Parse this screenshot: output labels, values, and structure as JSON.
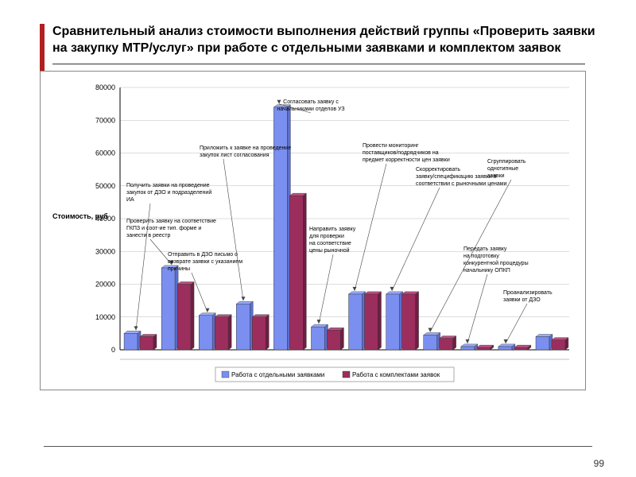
{
  "slide": {
    "title": "Сравнительный анализ стоимости выполнения действий группы «Проверить заявки на закупку МТР/услуг» при работе с отдельными заявками и комплектом заявок",
    "page_number": "99"
  },
  "accent_color": "#b02020",
  "chart": {
    "type": "bar",
    "background_color": "#ffffff",
    "grid_color": "#bbbbbb",
    "axis_color": "#000000",
    "ylabel": "Стоимость, руб",
    "ylabel_fontsize": 9,
    "ylim": [
      0,
      80000
    ],
    "ytick_step": 10000,
    "yticks": [
      0,
      10000,
      20000,
      30000,
      40000,
      50000,
      60000,
      70000,
      80000
    ],
    "legend": {
      "items": [
        {
          "label": "Работа с отдельными заявками",
          "color": "#7a8ff0"
        },
        {
          "label": "Работа с комплектами заявок",
          "color": "#9c2e5e"
        }
      ]
    },
    "bar_colors": {
      "series_a": "#7a8ff0",
      "series_b": "#9c2e5e"
    },
    "bar_width": 0.36,
    "categories_count": 12,
    "data": [
      {
        "annot": "Получить заявки на проведение\nзакупок от ДЗО и подразделений\nИА",
        "a": 5000,
        "b": 4000,
        "annot_side": "left"
      },
      {
        "annot": "Проверить заявку на соответствие\nГКПЗ и соот-ие тип. форме и\nзанести в реестр",
        "a": 25000,
        "b": 20000,
        "annot_side": "left"
      },
      {
        "annot": "Отправить в ДЗО письмо о\nвозврате заявки с указанием\nпричины",
        "a": 10500,
        "b": 10000,
        "annot_side": "left"
      },
      {
        "annot": "Приложить к заявке на проведение\nзакупок лист согласования",
        "a": 14000,
        "b": 10000,
        "annot_side": "left"
      },
      {
        "annot": "Согласовать заявку с\nначальниками отделов УЗ",
        "a": 74000,
        "b": 47000,
        "annot_side": "top"
      },
      {
        "annot": "Направить заявку\nдля проверки\nна соответствие\nцены рыночной",
        "a": 7000,
        "b": 6000,
        "annot_side": "right"
      },
      {
        "annot": "Провести мониторинг\nпоставщиков/подрядчиков на\nпредмет корректности цен заявки",
        "a": 17000,
        "b": 17000,
        "annot_side": "right"
      },
      {
        "annot": "Скорректировать\nзаявку/спецификацию заявки в\nсоответствии с рыночными ценами",
        "a": 17000,
        "b": 17000,
        "annot_side": "right"
      },
      {
        "annot": "Сгруппировать\nоднотипные\nзаявки",
        "a": 4500,
        "b": 3500,
        "annot_side": "right"
      },
      {
        "annot": "Передать заявку\nна подготовку\nконкурентной процедуры\nначальнику ОПКП",
        "a": 1000,
        "b": 700,
        "annot_side": "right"
      },
      {
        "annot": "Проанализировать\nзаявки от ДЗО",
        "a": 1000,
        "b": 700,
        "annot_side": "right"
      },
      {
        "annot": "",
        "a": 4000,
        "b": 3000,
        "annot_side": "none"
      }
    ]
  }
}
